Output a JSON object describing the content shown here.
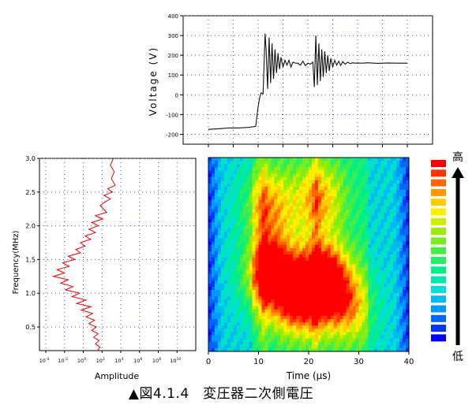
{
  "caption": "▲図4.1.4　変圧器二次側電圧",
  "legend": {
    "top_label": "高",
    "bottom_label": "低"
  },
  "chart_data": [
    {
      "type": "line",
      "id": "voltage",
      "ylabel": "Voltage (V)",
      "xlabel": "",
      "xlim": [
        0,
        40
      ],
      "ylim": [
        -250,
        400
      ],
      "yticks": [
        -200,
        -100,
        0,
        100,
        200,
        300,
        400
      ],
      "yticklabels": [
        "-200",
        "-100",
        "0",
        "100",
        "200",
        "300",
        "400"
      ],
      "grid": true,
      "series": [
        {
          "x": [
            0,
            2,
            4,
            6,
            8,
            9.5,
            10,
            10.3,
            10.6,
            11.0,
            11.4,
            11.6,
            11.9,
            12.2,
            12.5,
            12.8,
            13.1,
            13.4,
            13.7,
            14.0,
            14.3,
            14.6,
            15.0,
            15.4,
            15.8,
            16.2,
            16.6,
            17.0,
            17.5,
            18.0,
            18.5,
            19.0,
            19.5,
            20.0,
            20.5,
            21.0,
            21.3,
            21.6,
            21.9,
            22.2,
            22.5,
            22.8,
            23.1,
            23.4,
            23.7,
            24.0,
            24.3,
            24.6,
            25.0,
            25.4,
            25.8,
            26.2,
            26.6,
            27.0,
            27.5,
            28.0,
            28.5,
            29.0,
            29.5,
            30.0,
            31,
            32,
            34,
            36,
            38,
            40
          ],
          "y": [
            -175,
            -172,
            -168,
            -168,
            -165,
            -160,
            -60,
            -15,
            10,
            5,
            310,
            230,
            30,
            290,
            60,
            260,
            80,
            230,
            110,
            210,
            130,
            190,
            140,
            175,
            150,
            175,
            140,
            165,
            160,
            160,
            150,
            170,
            148,
            160,
            155,
            165,
            40,
            300,
            50,
            260,
            70,
            230,
            90,
            220,
            110,
            200,
            120,
            185,
            140,
            175,
            150,
            170,
            148,
            168,
            155,
            165,
            158,
            162,
            160,
            161,
            160,
            162,
            159,
            161,
            160,
            160
          ]
        }
      ]
    },
    {
      "type": "line",
      "id": "spectrum",
      "xlabel": "Amplitude",
      "ylabel": "Frequency(MHz)",
      "xscale": "log",
      "xlim": [
        -4,
        12
      ],
      "ylim": [
        0.15,
        3.0
      ],
      "yticks": [
        0.5,
        1.0,
        1.5,
        2.0,
        2.5,
        3.0
      ],
      "yticklabels": [
        "0.5",
        "1.0",
        "1.5",
        "2.0",
        "2.5",
        "3.0"
      ],
      "xticks": [
        -4,
        -2,
        0,
        2,
        4,
        6,
        8,
        10
      ],
      "xticklabels": [
        "10-4",
        "10-2",
        "100",
        "102",
        "104",
        "106",
        "108",
        "1010"
      ],
      "grid": true,
      "color": "#ee0000",
      "series": [
        {
          "x": [
            1.5,
            1.8,
            1.3,
            1.7,
            1.1,
            1.6,
            0.9,
            1.4,
            0.6,
            1.2,
            0.3,
            1.0,
            -0.2,
            0.8,
            -0.7,
            0.3,
            -1.2,
            -0.4,
            -1.9,
            -1.1,
            -2.4,
            -1.6,
            -3.2,
            -2.0,
            -2.8,
            -1.5,
            -2.2,
            -0.9,
            -1.6,
            -0.3,
            -0.8,
            0.2,
            -0.3,
            0.8,
            0.2,
            1.3,
            0.6,
            1.6,
            0.9,
            2.1,
            1.3,
            2.5,
            1.8,
            2.3,
            2.9,
            2.2,
            3.1,
            2.6,
            3.4,
            3.0,
            3.3,
            2.9,
            3.2
          ],
          "y": [
            0.15,
            0.2,
            0.25,
            0.3,
            0.35,
            0.4,
            0.45,
            0.5,
            0.55,
            0.6,
            0.65,
            0.7,
            0.75,
            0.8,
            0.85,
            0.9,
            0.95,
            1.0,
            1.05,
            1.1,
            1.15,
            1.2,
            1.25,
            1.3,
            1.35,
            1.4,
            1.45,
            1.5,
            1.55,
            1.6,
            1.65,
            1.7,
            1.75,
            1.8,
            1.85,
            1.9,
            1.95,
            2.0,
            2.05,
            2.1,
            2.15,
            2.2,
            2.3,
            2.35,
            2.4,
            2.45,
            2.5,
            2.55,
            2.6,
            2.7,
            2.8,
            2.9,
            3.0
          ]
        }
      ]
    },
    {
      "type": "heatmap",
      "id": "scalogram",
      "xlabel": "Time (μs)",
      "ylabel": "",
      "xlim": [
        0,
        40
      ],
      "ylim": [
        0.15,
        3.0
      ],
      "xticks": [
        0,
        10,
        20,
        30,
        40
      ],
      "xticklabels": [
        "0",
        "10",
        "20",
        "30",
        "40"
      ],
      "colorscale": [
        "#0000ff",
        "#0033ff",
        "#0066ff",
        "#0099ff",
        "#00bbee",
        "#00dddd",
        "#00e8b0",
        "#00ee88",
        "#22ee66",
        "#44ee44",
        "#77ee22",
        "#99ee00",
        "#ccee00",
        "#ffee00",
        "#ffcc00",
        "#ff9900",
        "#ff6600",
        "#ff3300",
        "#ff0000"
      ],
      "blobs": [
        {
          "t": 12.5,
          "f": 1.3,
          "value": 1.0
        },
        {
          "t": 23.0,
          "f": 1.2,
          "value": 1.0
        },
        {
          "t": 18.0,
          "f": 0.9,
          "value": 0.7
        },
        {
          "t": 12.0,
          "f": 2.3,
          "value": 0.55
        },
        {
          "t": 22.0,
          "f": 2.4,
          "value": 0.55
        },
        {
          "t": 28.0,
          "f": 0.8,
          "value": 0.5
        }
      ]
    }
  ]
}
